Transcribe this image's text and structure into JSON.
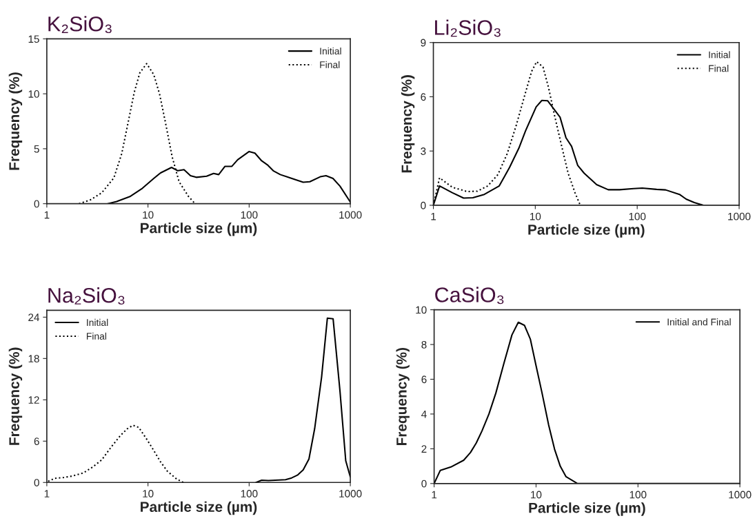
{
  "chart_data": [
    {
      "type": "line",
      "title": "K₂SiO₃",
      "xlabel": "Particle size (µm)",
      "ylabel": "Frequency (%)",
      "log": "x",
      "xlim": [
        1,
        1000
      ],
      "xticks": [
        1,
        10,
        100,
        1000
      ],
      "ylim": [
        0,
        15
      ],
      "yticks": [
        0,
        5,
        10,
        15
      ],
      "grid": false,
      "legend": "top right",
      "marker": "none",
      "series": [
        {
          "name": "Initial",
          "color": "#000000",
          "line_style": "solid",
          "x": [
            4.0,
            4.9,
            6.7,
            8.8,
            11.4,
            13.3,
            17.1,
            19.7,
            22.7,
            26.3,
            30,
            38,
            44.5,
            50,
            57.7,
            67.5,
            77,
            100,
            114,
            133,
            151,
            173,
            203,
            264,
            342,
            398,
            504,
            575,
            674,
            790,
            1000
          ],
          "values": [
            0,
            0.2,
            0.67,
            1.4,
            2.3,
            2.8,
            3.3,
            3.0,
            3.1,
            2.55,
            2.4,
            2.5,
            2.75,
            2.65,
            3.4,
            3.4,
            4.0,
            4.75,
            4.6,
            3.9,
            3.55,
            3.0,
            2.65,
            2.3,
            1.95,
            2.0,
            2.45,
            2.55,
            2.3,
            1.6,
            0.15
          ]
        },
        {
          "name": "Final",
          "color": "#000000",
          "line_style": "dotted",
          "x": [
            2.08,
            2.7,
            3.5,
            4.6,
            5.5,
            6.4,
            7.3,
            8.3,
            9.7,
            11.4,
            13.0,
            14.8,
            17.3,
            20.3,
            25.1,
            29.2
          ],
          "values": [
            0,
            0.35,
            1.0,
            2.35,
            4.55,
            7.5,
            10.1,
            11.9,
            12.75,
            11.75,
            10.0,
            7.5,
            4.3,
            2.0,
            0.67,
            0
          ]
        }
      ]
    },
    {
      "type": "line",
      "title": "Li₂SiO₃",
      "xlabel": "Particle size (µm)",
      "ylabel": "Frequency (%)",
      "log": "x",
      "xlim": [
        1,
        1000
      ],
      "xticks": [
        1,
        10,
        100,
        1000
      ],
      "ylim": [
        0,
        9
      ],
      "yticks": [
        0,
        3,
        6,
        9
      ],
      "grid": false,
      "legend": "top right",
      "marker": "none",
      "series": [
        {
          "name": "Initial",
          "color": "#000000",
          "line_style": "solid",
          "x": [
            1,
            1.15,
            1.53,
            1.98,
            2.44,
            3.16,
            4.43,
            5.6,
            6.9,
            8.0,
            10.2,
            11.6,
            13.2,
            17.5,
            20,
            22.7,
            26.1,
            30.2,
            40,
            52,
            67,
            92,
            112,
            155,
            190,
            260,
            302,
            363,
            446,
            1000
          ],
          "values": [
            0,
            1.07,
            0.7,
            0.4,
            0.42,
            0.6,
            1.07,
            2.1,
            3.16,
            4.1,
            5.44,
            5.8,
            5.78,
            4.87,
            3.73,
            3.26,
            2.2,
            1.77,
            1.14,
            0.86,
            0.86,
            0.92,
            0.95,
            0.88,
            0.85,
            0.6,
            0.34,
            0.15,
            0,
            0
          ]
        },
        {
          "name": "Final",
          "color": "#000000",
          "line_style": "dotted",
          "x": [
            1,
            1.15,
            1.53,
            2.14,
            2.7,
            3.42,
            4.3,
            5.3,
            6.5,
            7.8,
            9.2,
            10.3,
            11.9,
            13.5,
            15.4,
            18.0,
            21,
            24.5,
            27.6
          ],
          "values": [
            0,
            1.52,
            1.0,
            0.76,
            0.78,
            1.07,
            1.7,
            2.85,
            4.42,
            6.0,
            7.4,
            7.94,
            7.65,
            6.5,
            5.0,
            3.35,
            1.77,
            0.7,
            0
          ]
        }
      ]
    },
    {
      "type": "line",
      "title": "Na₂SiO₃",
      "xlabel": "Particle size (µm)",
      "ylabel": "Frequency (%)",
      "log": "x",
      "xlim": [
        1,
        1000
      ],
      "xticks": [
        1,
        10,
        100,
        1000
      ],
      "ylim": [
        0,
        25
      ],
      "yticks": [
        0,
        6,
        12,
        18,
        24
      ],
      "grid": false,
      "legend": "top left",
      "marker": "none",
      "series": [
        {
          "name": "Initial",
          "color": "#000000",
          "line_style": "solid",
          "x": [
            117,
            133,
            155,
            229,
            263,
            300,
            342,
            390,
            444,
            520,
            593,
            676,
            790,
            901,
            1000
          ],
          "values": [
            0,
            0.33,
            0.27,
            0.4,
            0.66,
            1.06,
            1.83,
            3.4,
            7.8,
            15.3,
            23.85,
            23.75,
            13.3,
            3.15,
            0.8
          ]
        },
        {
          "name": "Final",
          "color": "#000000",
          "line_style": "dotted",
          "x": [
            1.03,
            1.2,
            1.48,
            1.78,
            2.31,
            2.85,
            3.5,
            4.33,
            5.33,
            6.24,
            7.1,
            8.1,
            9.7,
            11.4,
            13.3,
            15.5,
            19.2,
            22.4
          ],
          "values": [
            0.17,
            0.6,
            0.73,
            0.93,
            1.4,
            2.26,
            3.3,
            5.15,
            6.8,
            7.8,
            8.3,
            8.0,
            6.3,
            4.65,
            3.0,
            1.66,
            0.5,
            0
          ]
        }
      ]
    },
    {
      "type": "line",
      "title": "CaSiO₃",
      "xlabel": "Particle size (µm)",
      "ylabel": "Frequency (%)",
      "log": "x",
      "xlim": [
        1,
        1000
      ],
      "xticks": [
        1,
        10,
        100,
        1000
      ],
      "ylim": [
        0,
        10
      ],
      "yticks": [
        0,
        2,
        4,
        6,
        8,
        10
      ],
      "grid": false,
      "legend": "top right",
      "marker": "none",
      "series": [
        {
          "name": "Initial and Final",
          "color": "#000000",
          "line_style": "solid",
          "x": [
            1,
            1.15,
            1.46,
            1.95,
            2.27,
            2.59,
            2.95,
            3.45,
            4.03,
            4.83,
            5.8,
            6.7,
            7.7,
            8.8,
            10,
            11.4,
            13.3,
            15.2,
            17.3,
            19.7,
            25.5,
            1000
          ],
          "values": [
            0,
            0.76,
            0.95,
            1.34,
            1.78,
            2.33,
            3.03,
            4.0,
            5.2,
            6.9,
            8.55,
            9.28,
            9.1,
            8.3,
            6.78,
            5.26,
            3.36,
            1.97,
            0.99,
            0.39,
            0,
            0
          ]
        }
      ]
    }
  ]
}
